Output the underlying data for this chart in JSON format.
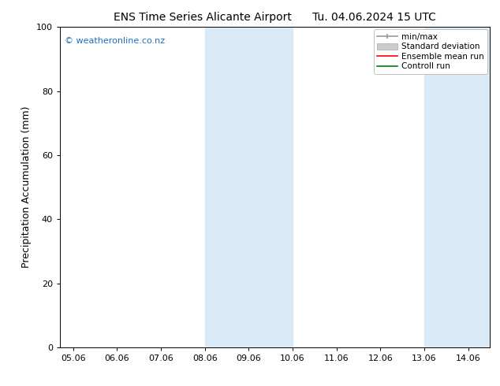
{
  "title_left": "ENS Time Series Alicante Airport",
  "title_right": "Tu. 04.06.2024 15 UTC",
  "ylabel": "Precipitation Accumulation (mm)",
  "ylim": [
    0,
    100
  ],
  "yticks": [
    0,
    20,
    40,
    60,
    80,
    100
  ],
  "xtick_positions": [
    5,
    6,
    7,
    8,
    9,
    10,
    11,
    12,
    13,
    14
  ],
  "xtick_labels": [
    "05.06",
    "06.06",
    "07.06",
    "08.06",
    "09.06",
    "10.06",
    "11.06",
    "12.06",
    "13.06",
    "14.06"
  ],
  "xlim": [
    4.7,
    14.5
  ],
  "shaded_regions": [
    {
      "xstart": 8.0,
      "xend": 10.0
    },
    {
      "xstart": 13.0,
      "xend": 14.5
    }
  ],
  "shaded_color": "#daeaf6",
  "bg_color": "#ffffff",
  "watermark_text": "© weatheronline.co.nz",
  "watermark_color": "#1a6ebf",
  "title_fontsize": 10,
  "ylabel_fontsize": 9,
  "tick_fontsize": 8,
  "legend_fontsize": 7.5,
  "watermark_fontsize": 8
}
